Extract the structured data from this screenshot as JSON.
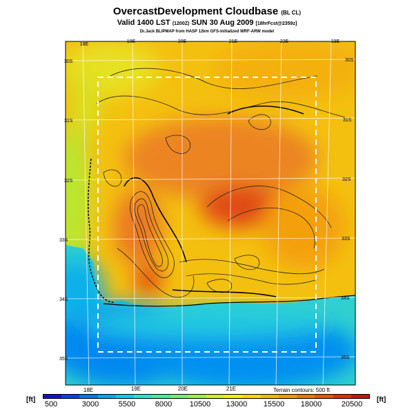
{
  "header": {
    "title": "OvercastDevelopment Cloudbase",
    "title_suffix": "(BL CL)",
    "valid_line": "Valid 1400 LST",
    "valid_utc": "(1200Z)",
    "valid_date": "SUN 30 Aug 2009",
    "forecast_tag": "[18hrFcst@2359z]",
    "credit": "Dr.Jack BLIPMAP from HASP 12km GFS-initialized WRF-ARW model"
  },
  "map": {
    "top_lon_labels": [
      "18E",
      "19E",
      "20E",
      "21E",
      "22E",
      "23E"
    ],
    "bottom_lon_labels": [
      "18E",
      "19E",
      "20E",
      "21E"
    ],
    "left_lat_labels": [
      "30S",
      "31S",
      "32S",
      "33S",
      "34S",
      "35S"
    ],
    "right_lat_labels": [
      "30S",
      "31S",
      "32S",
      "33S",
      "34S",
      "35S"
    ],
    "terrain_note": "Terrain contours: 500 ft"
  },
  "colorbar": {
    "unit": "[ft]",
    "ticks": [
      "500",
      "3000",
      "5500",
      "8000",
      "10500",
      "13000",
      "15500",
      "18000",
      "20500"
    ],
    "colors": [
      "#1a10c8",
      "#0040e8",
      "#0078f0",
      "#00a8f0",
      "#00d0f0",
      "#20e8d0",
      "#40f0a0",
      "#70f070",
      "#a0f040",
      "#d0f020",
      "#f0f000",
      "#f8d800",
      "#f8b800",
      "#f89800",
      "#f07800",
      "#e85800",
      "#e03000",
      "#d01010"
    ]
  }
}
